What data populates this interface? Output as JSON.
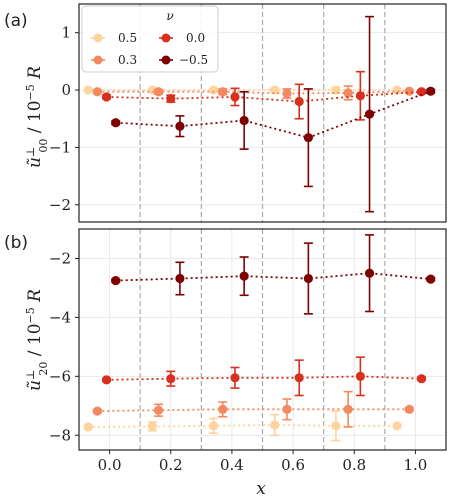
{
  "colors": {
    "0.5": "#fdd49e",
    "0.3": "#f4895f",
    "0.0": "#d7301f",
    "-0.5": "#7f0000",
    "grid": "#e8e8e8",
    "vline": "#a9a9a9",
    "frame": "#222222"
  },
  "chart_data": [
    {
      "type": "scatter",
      "panel_label": "(a)",
      "ylabel_main": "ũ",
      "ylabel_sup": "⊥",
      "ylabel_sub": "00",
      "ylabel_rest": " / 10",
      "ylabel_exp": "−5",
      "ylabel_unit": " R",
      "xlim": [
        -0.1,
        1.1
      ],
      "ylim": [
        -2.3,
        1.5
      ],
      "yticks": [
        1,
        0,
        -1,
        -2
      ],
      "ytick_labels": [
        "1",
        "0",
        "−1",
        "−2"
      ],
      "grid": true,
      "vlines": [
        0.1,
        0.3,
        0.5,
        0.7,
        0.9
      ],
      "legend": {
        "title": "ν",
        "placement": "top-left",
        "entries": [
          {
            "label": "0.5",
            "key": "0.5"
          },
          {
            "label": "0.3",
            "key": "0.3"
          },
          {
            "label": "0.0",
            "key": "0.0"
          },
          {
            "label": "−0.5",
            "key": "-0.5"
          }
        ]
      },
      "series": [
        {
          "key": "0.5",
          "x": [
            -0.07,
            0.14,
            0.34,
            0.54,
            0.74,
            0.94
          ],
          "y": [
            0.0,
            0.0,
            0.0,
            0.0,
            0.0,
            0.0
          ],
          "err": [
            0.02,
            0.02,
            0.02,
            0.03,
            0.05,
            0.02
          ]
        },
        {
          "key": "0.3",
          "x": [
            -0.04,
            0.16,
            0.37,
            0.58,
            0.78,
            0.98
          ],
          "y": [
            -0.03,
            -0.03,
            -0.03,
            -0.06,
            -0.05,
            -0.02
          ],
          "err": [
            0.03,
            0.04,
            0.05,
            0.08,
            0.12,
            0.03
          ]
        },
        {
          "key": "0.0",
          "x": [
            -0.01,
            0.2,
            0.41,
            0.62,
            0.82,
            1.02
          ],
          "y": [
            -0.12,
            -0.15,
            -0.12,
            -0.2,
            -0.1,
            -0.03
          ],
          "err": [
            0.03,
            0.06,
            0.15,
            0.3,
            0.42,
            0.03
          ]
        },
        {
          "key": "-0.5",
          "x": [
            0.02,
            0.23,
            0.44,
            0.65,
            0.85,
            1.05
          ],
          "y": [
            -0.57,
            -0.63,
            -0.53,
            -0.83,
            -0.42,
            -0.02
          ],
          "err": [
            0.03,
            0.18,
            0.5,
            0.85,
            1.7,
            0.03
          ]
        }
      ]
    },
    {
      "type": "scatter",
      "panel_label": "(b)",
      "ylabel_main": "ũ",
      "ylabel_sup": "⊥",
      "ylabel_sub": "20",
      "ylabel_rest": " / 10",
      "ylabel_exp": "−5",
      "ylabel_unit": " R",
      "xlabel": "x",
      "xlim": [
        -0.1,
        1.1
      ],
      "ylim": [
        -8.5,
        -1.0
      ],
      "yticks": [
        -2,
        -4,
        -6,
        -8
      ],
      "ytick_labels": [
        "−2",
        "−4",
        "−6",
        "−8"
      ],
      "xticks": [
        0.0,
        0.2,
        0.4,
        0.6,
        0.8,
        1.0
      ],
      "xtick_labels": [
        "0.0",
        "0.2",
        "0.4",
        "0.6",
        "0.8",
        "1.0"
      ],
      "grid": true,
      "vlines": [
        0.1,
        0.3,
        0.5,
        0.7,
        0.9
      ],
      "series": [
        {
          "key": "0.5",
          "x": [
            -0.07,
            0.14,
            0.34,
            0.54,
            0.74,
            0.94
          ],
          "y": [
            -7.72,
            -7.7,
            -7.68,
            -7.65,
            -7.68,
            -7.68
          ],
          "err": [
            0.05,
            0.15,
            0.25,
            0.35,
            0.5,
            0.05
          ]
        },
        {
          "key": "0.3",
          "x": [
            -0.04,
            0.16,
            0.37,
            0.58,
            0.78,
            0.98
          ],
          "y": [
            -7.18,
            -7.15,
            -7.12,
            -7.12,
            -7.12,
            -7.12
          ],
          "err": [
            0.05,
            0.2,
            0.25,
            0.35,
            0.6,
            0.05
          ]
        },
        {
          "key": "0.0",
          "x": [
            -0.01,
            0.2,
            0.41,
            0.62,
            0.82,
            1.02
          ],
          "y": [
            -6.12,
            -6.08,
            -6.05,
            -6.05,
            -6.0,
            -6.08
          ],
          "err": [
            0.05,
            0.25,
            0.35,
            0.6,
            0.65,
            0.05
          ]
        },
        {
          "key": "-0.5",
          "x": [
            0.02,
            0.23,
            0.44,
            0.65,
            0.85,
            1.05
          ],
          "y": [
            -2.75,
            -2.68,
            -2.6,
            -2.68,
            -2.5,
            -2.7
          ],
          "err": [
            0.05,
            0.55,
            0.65,
            1.2,
            1.3,
            0.05
          ]
        }
      ]
    }
  ]
}
